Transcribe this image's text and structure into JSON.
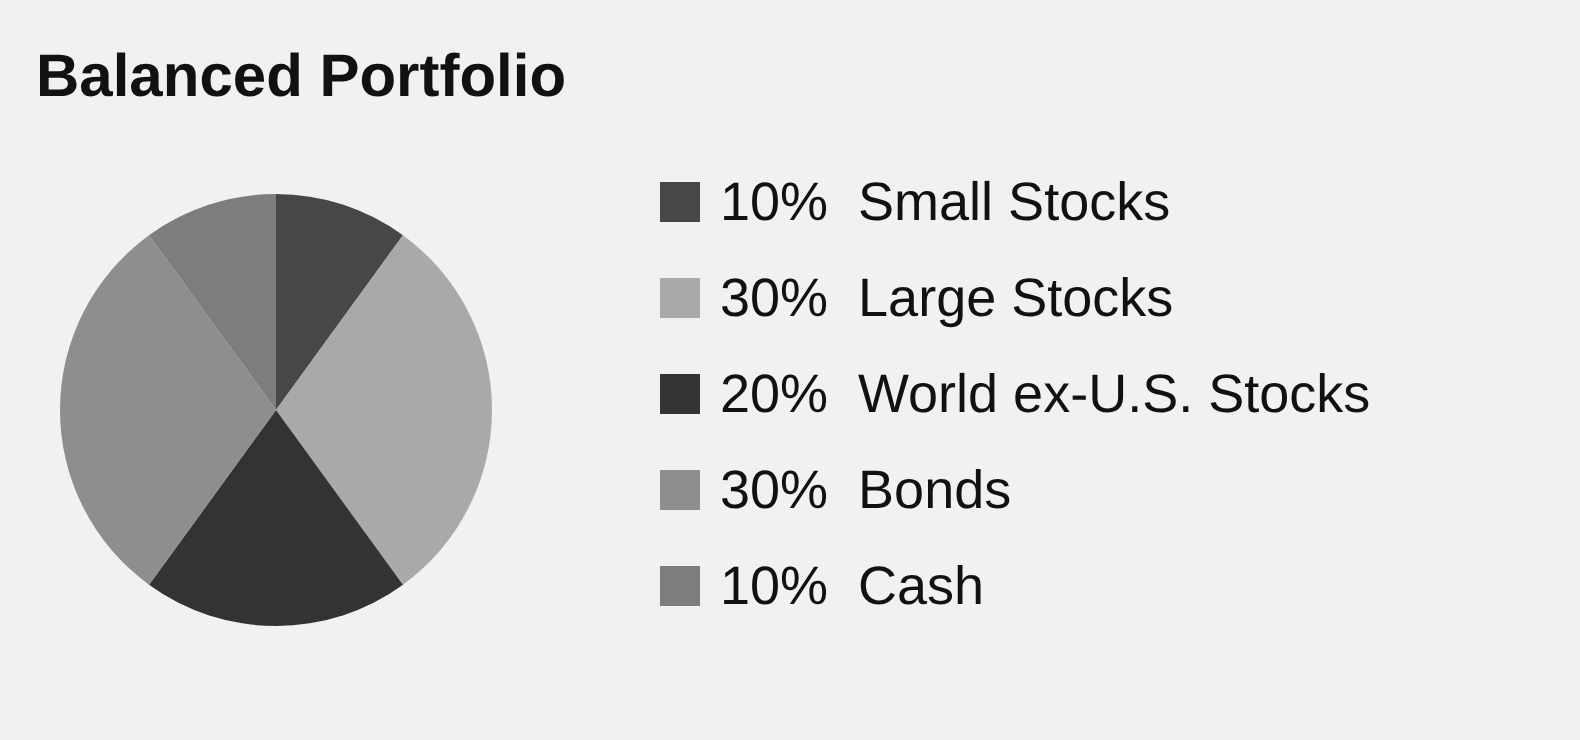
{
  "chart_data": {
    "type": "pie",
    "title": "Balanced Portfolio",
    "categories": [
      "Small Stocks",
      "Large Stocks",
      "World ex-U.S. Stocks",
      "Bonds",
      "Cash"
    ],
    "values": [
      10,
      30,
      20,
      30,
      10
    ],
    "value_labels": [
      "10%",
      "30%",
      "20%",
      "30%",
      "10%"
    ],
    "colors": [
      "#474747",
      "#a9a9a9",
      "#333333",
      "#8e8e8e",
      "#7d7d7d"
    ],
    "legend": "right"
  }
}
